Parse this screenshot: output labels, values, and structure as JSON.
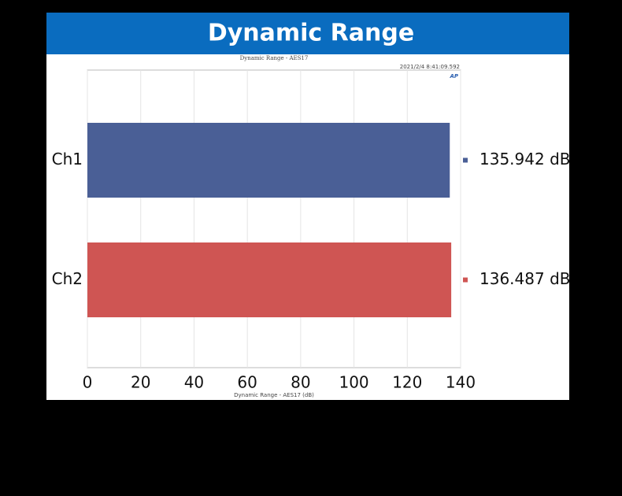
{
  "chart_data": {
    "type": "bar",
    "orientation": "horizontal",
    "title": "Dynamic Range",
    "subtitle": "Dynamic Range - AES17",
    "timestamp": "2021/2/4 8:41:09.592",
    "logo": "AP",
    "x_label": "Dynamic Range - AES17 (dB)",
    "categories": [
      "Ch1",
      "Ch2"
    ],
    "values": [
      135.942,
      136.487
    ],
    "value_labels": [
      "135.942 dB",
      "136.487 dB"
    ],
    "colors": [
      "#4a5f96",
      "#cf5553"
    ],
    "xlim": [
      0,
      140
    ],
    "xticks": [
      0,
      20,
      40,
      60,
      80,
      100,
      120,
      140
    ],
    "grid": true
  }
}
